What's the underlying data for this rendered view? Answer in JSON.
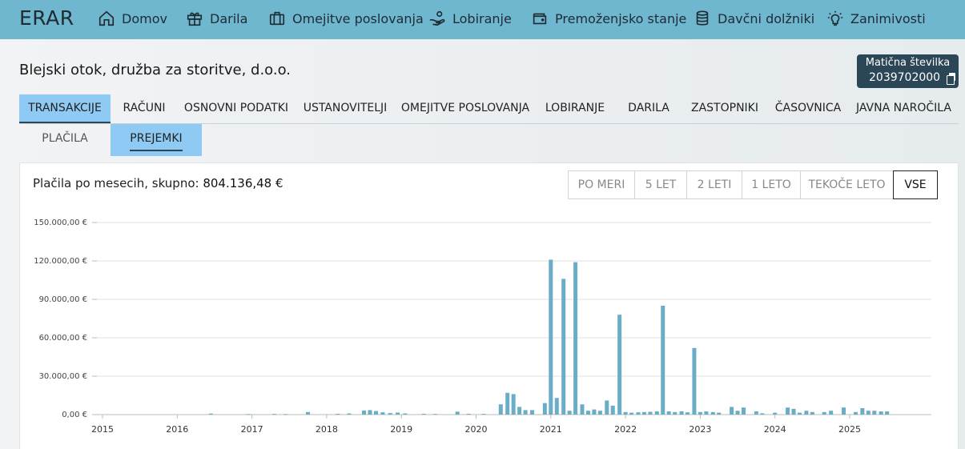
{
  "brand": "ERAR",
  "nav": [
    {
      "label": "Domov",
      "icon": "home-icon"
    },
    {
      "label": "Darila",
      "icon": "gift-icon"
    },
    {
      "label": "Omejitve poslovanja",
      "icon": "briefcase-icon"
    },
    {
      "label": "Lobiranje",
      "icon": "hand-coin-icon"
    },
    {
      "label": "Premoženjsko stanje",
      "icon": "wallet-icon"
    },
    {
      "label": "Davčni dolžniki",
      "icon": "coins-stack-icon"
    },
    {
      "label": "Zanimivosti",
      "icon": "lightbulb-icon"
    }
  ],
  "company": {
    "name": "Blejski otok, družba za storitve, d.o.o."
  },
  "registration": {
    "title": "Matična številka",
    "value": "2039702000"
  },
  "tabs": [
    "TRANSAKCIJE",
    "RAČUNI",
    "OSNOVNI PODATKI",
    "USTANOVITELJI",
    "OMEJITVE POSLOVANJA",
    "LOBIRANJE",
    "DARILA",
    "ZASTOPNIKI",
    "ČASOVNICA",
    "JAVNA NAROČILA"
  ],
  "active_tab": "TRANSAKCIJE",
  "subtabs": [
    "PLAČILA",
    "PREJEMKI"
  ],
  "active_subtab": "PREJEMKI",
  "card": {
    "title_prefix": "Plačila po mesecih, skupno:",
    "total": "804.136,48 €"
  },
  "ranges": [
    "PO MERI",
    "5 LET",
    "2 LETI",
    "1 LETO",
    "TEKOČE LETO",
    "VSE"
  ],
  "active_range": "VSE",
  "colors": {
    "topbar": "#6fb6cf",
    "bar": "#6aadc6",
    "active_tab": "#8ecaf4",
    "badge": "#2b4657"
  },
  "chart_data": {
    "type": "bar",
    "ylim": [
      0,
      150000
    ],
    "y_ticks": [
      "0,00 €",
      "30.000,00 €",
      "60.000,00 €",
      "90.000,00 €",
      "120.000,00 €",
      "150.000,00 €"
    ],
    "y_tick_values": [
      0,
      30000,
      60000,
      90000,
      120000,
      150000
    ],
    "x_ticks": [
      "2015",
      "2016",
      "2017",
      "2018",
      "2019",
      "2020",
      "2021",
      "2022",
      "2023",
      "2024",
      "2025"
    ],
    "grid": true,
    "series": [
      {
        "values": [
          [
            2016.45,
            800
          ],
          [
            2016.95,
            400
          ],
          [
            2017.3,
            500
          ],
          [
            2017.45,
            400
          ],
          [
            2017.75,
            2000
          ],
          [
            2018.15,
            600
          ],
          [
            2018.3,
            900
          ],
          [
            2018.5,
            3200
          ],
          [
            2018.58,
            3500
          ],
          [
            2018.66,
            2800
          ],
          [
            2018.75,
            1800
          ],
          [
            2018.85,
            1200
          ],
          [
            2018.95,
            1600
          ],
          [
            2019.05,
            900
          ],
          [
            2019.3,
            600
          ],
          [
            2019.45,
            500
          ],
          [
            2019.75,
            2300
          ],
          [
            2019.9,
            600
          ],
          [
            2020.1,
            600
          ],
          [
            2020.33,
            8000
          ],
          [
            2020.42,
            17000
          ],
          [
            2020.5,
            16000
          ],
          [
            2020.58,
            6000
          ],
          [
            2020.66,
            3500
          ],
          [
            2020.75,
            3500
          ],
          [
            2020.92,
            9000
          ],
          [
            2021.0,
            121000
          ],
          [
            2021.08,
            13000
          ],
          [
            2021.17,
            106000
          ],
          [
            2021.25,
            3000
          ],
          [
            2021.33,
            119000
          ],
          [
            2021.42,
            8000
          ],
          [
            2021.5,
            3000
          ],
          [
            2021.58,
            4000
          ],
          [
            2021.66,
            3000
          ],
          [
            2021.75,
            11000
          ],
          [
            2021.83,
            7000
          ],
          [
            2021.92,
            78000
          ],
          [
            2022.0,
            2000
          ],
          [
            2022.08,
            1500
          ],
          [
            2022.17,
            1800
          ],
          [
            2022.25,
            2000
          ],
          [
            2022.33,
            2200
          ],
          [
            2022.42,
            2500
          ],
          [
            2022.5,
            85000
          ],
          [
            2022.58,
            2500
          ],
          [
            2022.66,
            2000
          ],
          [
            2022.75,
            2600
          ],
          [
            2022.83,
            1800
          ],
          [
            2022.92,
            52000
          ],
          [
            2023.0,
            2000
          ],
          [
            2023.08,
            2500
          ],
          [
            2023.17,
            2000
          ],
          [
            2023.25,
            1500
          ],
          [
            2023.42,
            6000
          ],
          [
            2023.5,
            3000
          ],
          [
            2023.58,
            5500
          ],
          [
            2023.75,
            2500
          ],
          [
            2023.83,
            1000
          ],
          [
            2024.0,
            1500
          ],
          [
            2024.17,
            5500
          ],
          [
            2024.25,
            4500
          ],
          [
            2024.33,
            1500
          ],
          [
            2024.42,
            3000
          ],
          [
            2024.5,
            2000
          ],
          [
            2024.66,
            2000
          ],
          [
            2024.75,
            3000
          ],
          [
            2024.92,
            5500
          ],
          [
            2025.08,
            2000
          ],
          [
            2025.17,
            5000
          ],
          [
            2025.25,
            3000
          ],
          [
            2025.33,
            3000
          ],
          [
            2025.42,
            2500
          ],
          [
            2025.5,
            2500
          ]
        ]
      }
    ]
  }
}
